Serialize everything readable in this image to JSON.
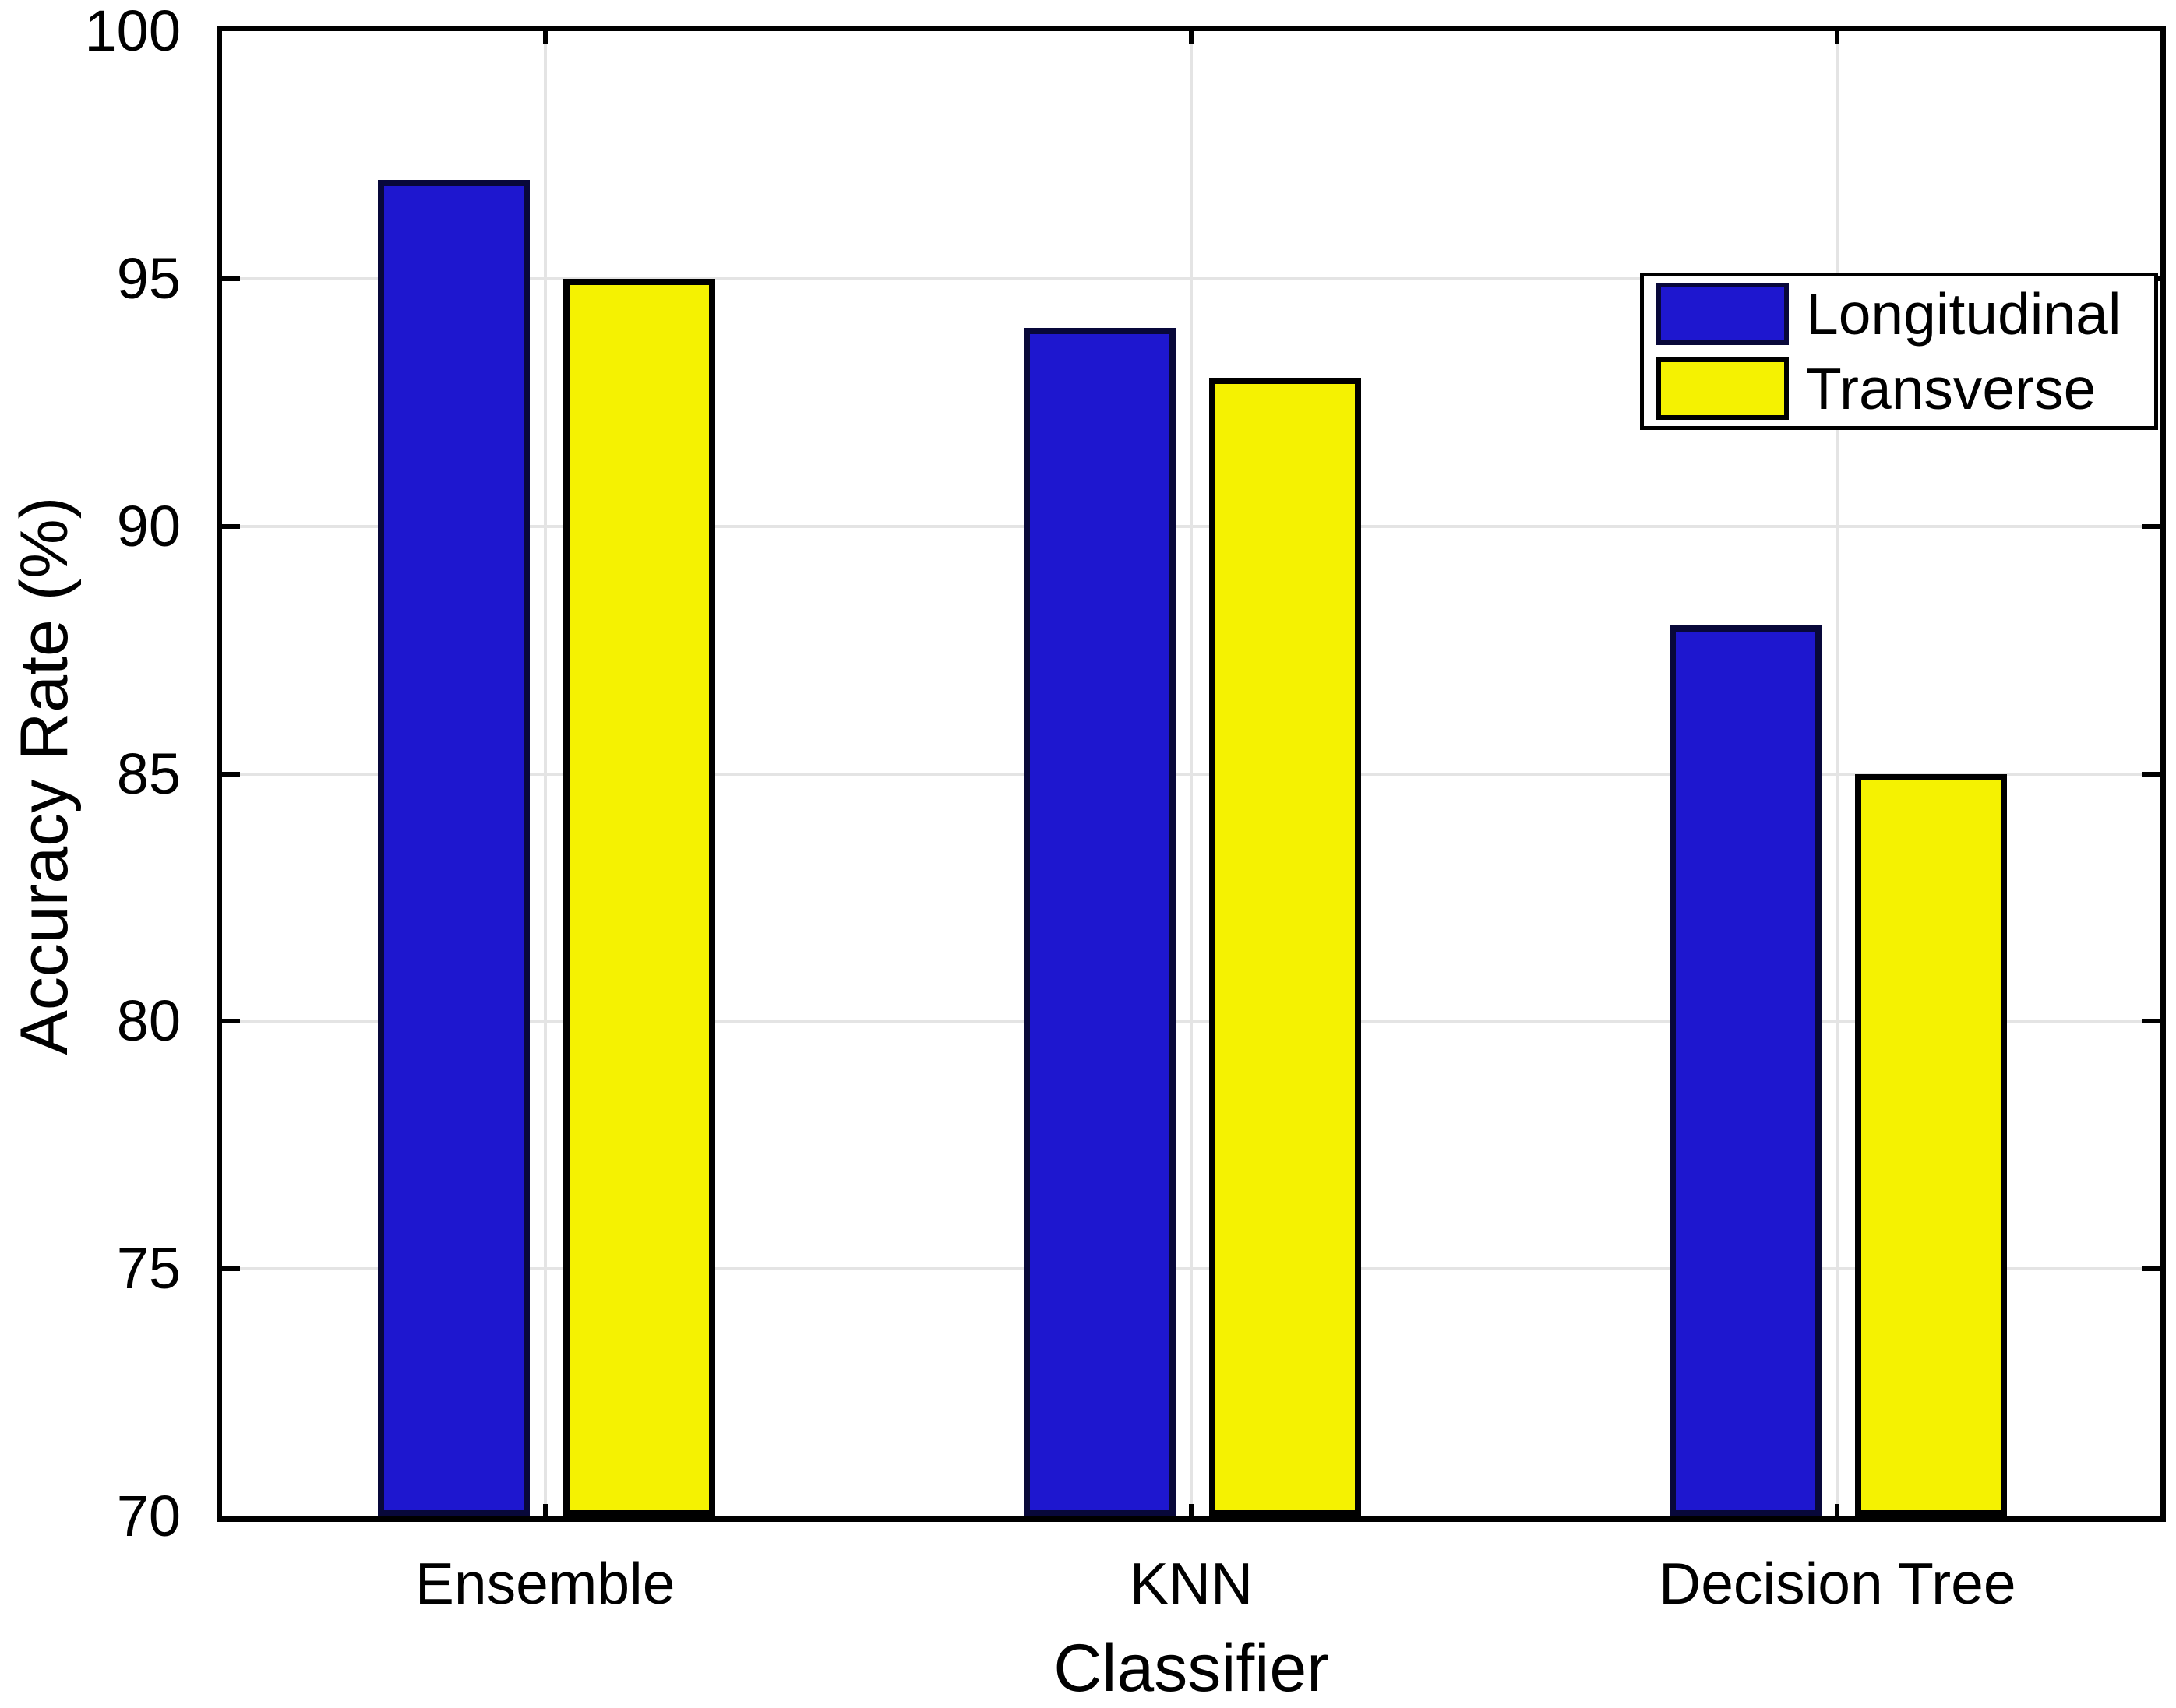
{
  "chart_data": {
    "type": "bar",
    "title": "",
    "xlabel": "Classifier",
    "ylabel": "Accuracy Rate (%)",
    "categories": [
      "Ensemble",
      "KNN",
      "Decision Tree"
    ],
    "series": [
      {
        "name": "Longitudinal",
        "color": "#1e17cf",
        "edge_color": "#08083a",
        "values": [
          97,
          94,
          88
        ]
      },
      {
        "name": "Transverse",
        "color": "#f5f201",
        "edge_color": "#000000",
        "values": [
          95,
          93,
          85
        ]
      }
    ],
    "ylim": [
      70,
      100
    ],
    "yticks": [
      70,
      75,
      80,
      85,
      90,
      95,
      100
    ],
    "grid": true,
    "legend_position": "top-right",
    "background_color": "#ffffff",
    "gridline_color": "#e4e4e4"
  }
}
